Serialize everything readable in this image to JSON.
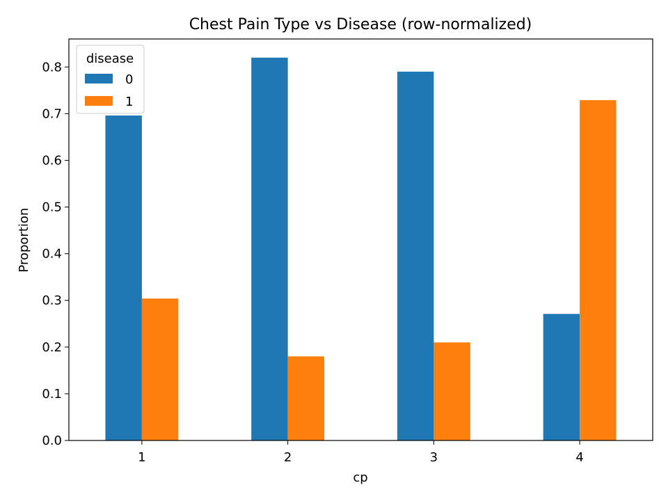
{
  "chart_data": {
    "type": "bar",
    "title": "Chest Pain Type vs Disease (row-normalized)",
    "xlabel": "cp",
    "ylabel": "Proportion",
    "categories": [
      "1",
      "2",
      "3",
      "4"
    ],
    "series": [
      {
        "name": "0",
        "color": "#1f77b4",
        "values": [
          0.696,
          0.82,
          0.79,
          0.271
        ]
      },
      {
        "name": "1",
        "color": "#ff7f0e",
        "values": [
          0.304,
          0.18,
          0.21,
          0.729
        ]
      }
    ],
    "ylim": [
      0,
      0.86
    ],
    "yticks": [
      "0.0",
      "0.1",
      "0.2",
      "0.3",
      "0.4",
      "0.5",
      "0.6",
      "0.7",
      "0.8"
    ],
    "legend": {
      "title": "disease",
      "placement": "top-left"
    },
    "grid": false
  }
}
